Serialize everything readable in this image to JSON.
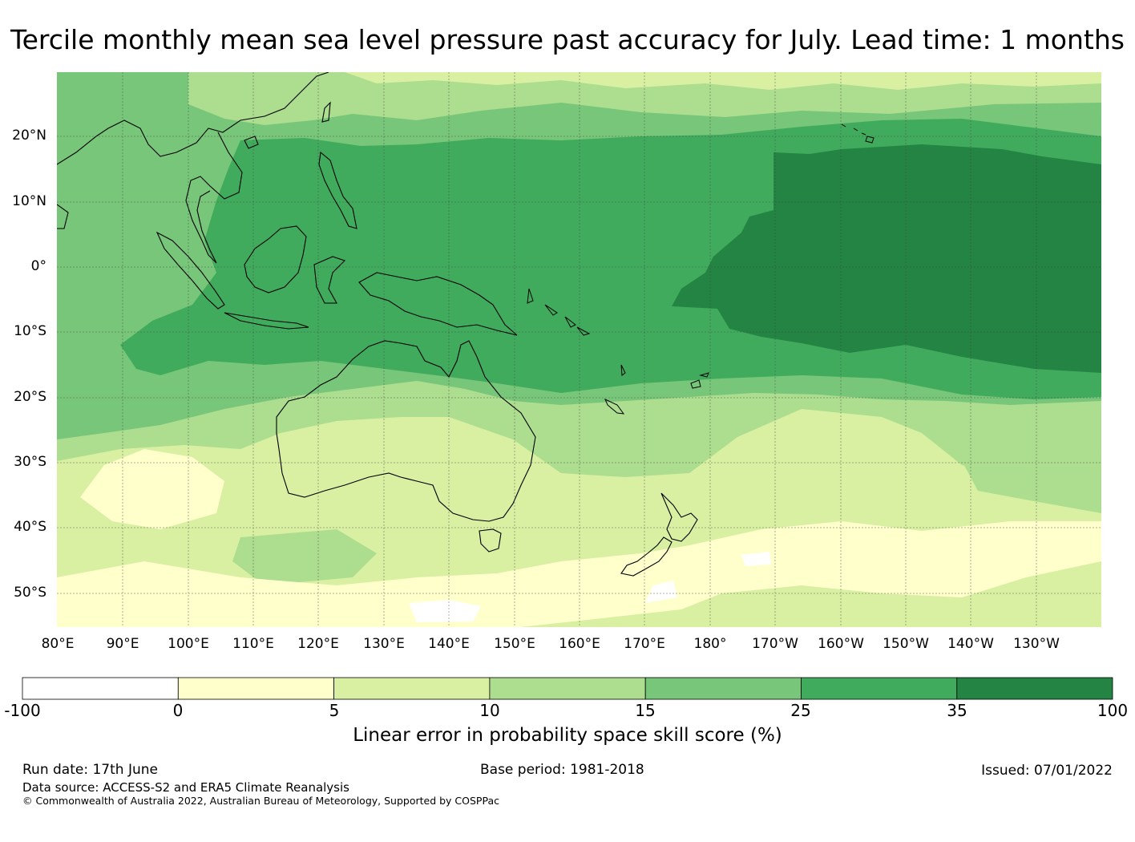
{
  "title": "Tercile monthly mean sea level pressure past accuracy for July. Lead time: 1 months",
  "map": {
    "lat_labels": [
      "20°N",
      "10°N",
      "0°",
      "10°S",
      "20°S",
      "30°S",
      "40°S",
      "50°S"
    ],
    "lon_labels": [
      "80°E",
      "90°E",
      "100°E",
      "110°E",
      "120°E",
      "130°E",
      "140°E",
      "150°E",
      "160°E",
      "170°E",
      "180°",
      "170°W",
      "160°W",
      "150°W",
      "140°W",
      "130°W"
    ],
    "extent": {
      "lon_min": 80,
      "lon_max": 240,
      "lat_min": -55,
      "lat_max": 30
    }
  },
  "colorbar": {
    "ticks": [
      "-100",
      "0",
      "5",
      "10",
      "15",
      "25",
      "35",
      "100"
    ],
    "colors": [
      "#ffffff",
      "#ffffcc",
      "#d9f0a3",
      "#addd8e",
      "#78c679",
      "#41ab5d",
      "#238443"
    ],
    "label": "Linear error in probability space skill score (%)"
  },
  "footer": {
    "run_date": "Run date: 17th June",
    "base_period": "Base period: 1981-2018",
    "issued": "Issued: 07/01/2022",
    "data_source": "Data source: ACCESS-S2 and ERA5 Climate Reanalysis",
    "copyright": "© Commonwealth of Australia 2022, Australian Bureau of Meteorology, Supported by COSPPac"
  }
}
